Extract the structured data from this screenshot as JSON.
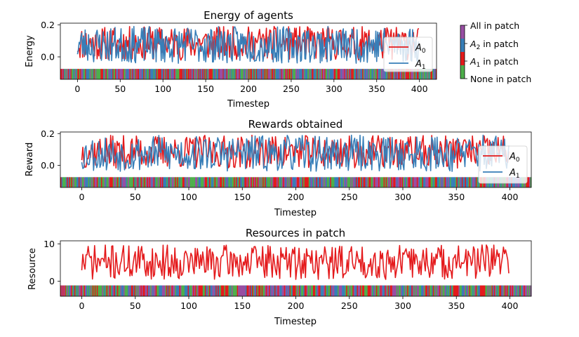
{
  "colors": {
    "a0": "#e41a1c",
    "a1": "#377eb8",
    "stripe_none": "#4daf4a",
    "stripe_a1": "#e41a1c",
    "stripe_a2": "#377eb8",
    "stripe_all": "#984ea3"
  },
  "chart_data": [
    {
      "type": "line",
      "title": "Energy of agents",
      "xlabel": "Timestep",
      "ylabel": "Energy",
      "xlim": [
        -20,
        420
      ],
      "ylim": [
        -0.14,
        0.21
      ],
      "x_ticks": [
        0,
        50,
        100,
        150,
        200,
        250,
        300,
        350,
        400
      ],
      "y_ticks": [
        0.0,
        0.2
      ],
      "y_tick_labels": [
        "0.0",
        "0.2"
      ],
      "legend": "top-right",
      "series": [
        {
          "name": "A0",
          "sub": "0",
          "color": "#e41a1c",
          "seed": 11,
          "min": -0.02,
          "max": 0.19,
          "n": 400
        },
        {
          "name": "A1",
          "sub": "1",
          "color": "#377eb8",
          "seed": 23,
          "min": -0.04,
          "max": 0.19,
          "n": 400
        }
      ],
      "stripe": {
        "y_range": [
          -0.14,
          -0.075
        ],
        "seed": 101
      }
    },
    {
      "type": "line",
      "title": "Rewards obtained",
      "xlabel": "Timestep",
      "ylabel": "Reward",
      "xlim": [
        -20,
        420
      ],
      "ylim": [
        -0.14,
        0.21
      ],
      "x_ticks": [
        0,
        50,
        100,
        150,
        200,
        250,
        300,
        350,
        400
      ],
      "y_ticks": [
        0.0,
        0.2
      ],
      "y_tick_labels": [
        "0.0",
        "0.2"
      ],
      "legend": "right",
      "series": [
        {
          "name": "A0",
          "sub": "0",
          "color": "#e41a1c",
          "seed": 37,
          "min": -0.02,
          "max": 0.19,
          "n": 400
        },
        {
          "name": "A1",
          "sub": "1",
          "color": "#377eb8",
          "seed": 53,
          "min": -0.04,
          "max": 0.19,
          "n": 400
        }
      ],
      "stripe": {
        "y_range": [
          -0.14,
          -0.075
        ],
        "seed": 202
      }
    },
    {
      "type": "line",
      "title": "Resources in patch",
      "xlabel": "Timestep",
      "ylabel": "Resource",
      "xlim": [
        -20,
        420
      ],
      "ylim": [
        -4,
        10.8
      ],
      "x_ticks": [
        0,
        50,
        100,
        150,
        200,
        250,
        300,
        350,
        400
      ],
      "y_ticks": [
        0,
        10
      ],
      "y_tick_labels": [
        "0",
        "10"
      ],
      "legend": "none",
      "series": [
        {
          "name": "Resource",
          "color": "#e41a1c",
          "seed": 71,
          "min": 0.5,
          "max": 9.8,
          "n": 400
        }
      ],
      "stripe": {
        "y_range": [
          -4,
          -1.1
        ],
        "seed": 303
      }
    }
  ],
  "colorbar": {
    "labels": [
      {
        "prefix": "",
        "sub": "",
        "rest": "All in patch"
      },
      {
        "prefix": "A",
        "sub": "2",
        "rest": " in patch"
      },
      {
        "prefix": "A",
        "sub": "1",
        "rest": " in patch"
      },
      {
        "prefix": "",
        "sub": "",
        "rest": "None in patch"
      }
    ],
    "colors": [
      "#984ea3",
      "#377eb8",
      "#e41a1c",
      "#4daf4a"
    ]
  }
}
